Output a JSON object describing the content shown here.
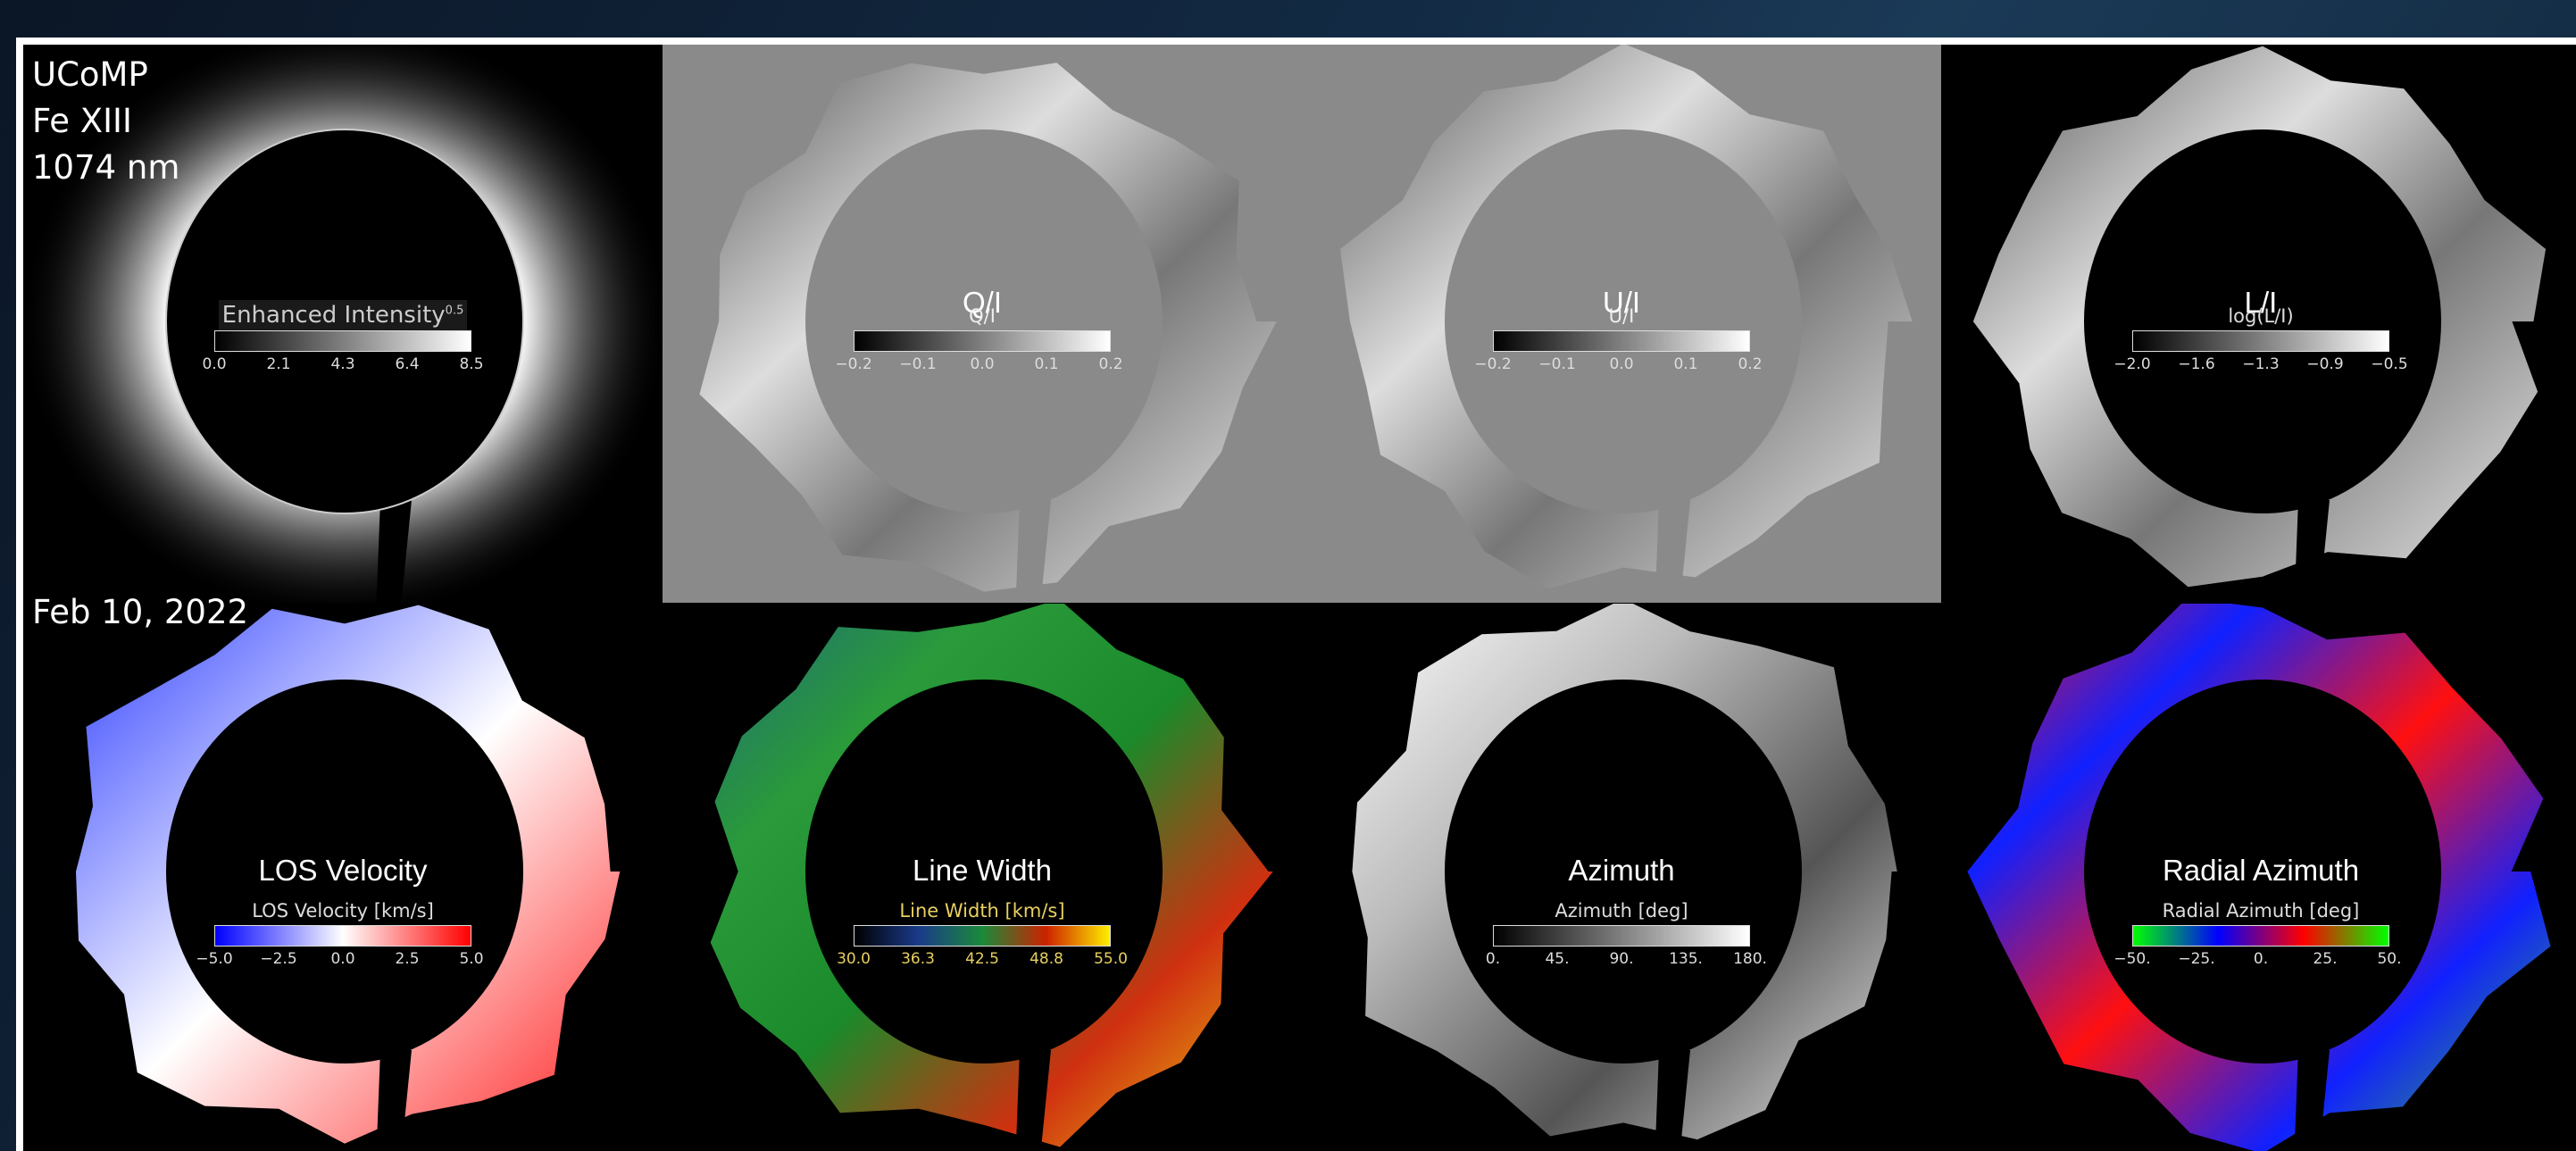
{
  "header": {
    "instrument_line": "UCoMP Fe XIII 1074 nm",
    "date": "Feb 10, 2022"
  },
  "panels": [
    {
      "id": "intensity",
      "title": "",
      "cb_label": "Enhanced Intensity",
      "cb_sup": "0.5",
      "ticks": [
        "0.0",
        "2.1",
        "4.3",
        "6.4",
        "8.5"
      ],
      "colors": [
        "#000000",
        "#ffffff"
      ]
    },
    {
      "id": "qi",
      "title": "Q/I",
      "cb_label": "Q/I",
      "ticks": [
        "−0.2",
        "−0.1",
        "0.0",
        "0.1",
        "0.2"
      ],
      "colors": [
        "#000000",
        "#ffffff"
      ]
    },
    {
      "id": "ui",
      "title": "U/I",
      "cb_label": "U/I",
      "ticks": [
        "−0.2",
        "−0.1",
        "0.0",
        "0.1",
        "0.2"
      ],
      "colors": [
        "#000000",
        "#ffffff"
      ]
    },
    {
      "id": "li",
      "title": "L/I",
      "cb_label": "log(L/I)",
      "ticks": [
        "−2.0",
        "−1.6",
        "−1.3",
        "−0.9",
        "−0.5"
      ],
      "colors": [
        "#000000",
        "#ffffff"
      ]
    },
    {
      "id": "los",
      "title": "LOS Velocity",
      "cb_label": "LOS Velocity [km/s]",
      "ticks": [
        "−5.0",
        "−2.5",
        "0.0",
        "2.5",
        "5.0"
      ],
      "colors": [
        "#0000ff",
        "#ffffff",
        "#ff0000"
      ]
    },
    {
      "id": "width",
      "title": "Line Width",
      "cb_label": "Line Width [km/s]",
      "ticks": [
        "30.0",
        "36.3",
        "42.5",
        "48.8",
        "55.0"
      ],
      "colors": [
        "#000000",
        "#1a3a8a",
        "#1a8a3a",
        "#cc2200",
        "#ffee00"
      ]
    },
    {
      "id": "azimuth",
      "title": "Azimuth",
      "cb_label": "Azimuth [deg]",
      "ticks": [
        "0.",
        "45.",
        "90.",
        "135.",
        "180."
      ],
      "colors": [
        "#000000",
        "#ffffff"
      ]
    },
    {
      "id": "radazi",
      "title": "Radial Azimuth",
      "cb_label": "Radial Azimuth [deg]",
      "ticks": [
        "−50.",
        "−25.",
        "0.",
        "25.",
        "50."
      ],
      "colors": [
        "#00ff00",
        "#0000ff",
        "#ff0000",
        "#00ff00"
      ]
    }
  ]
}
